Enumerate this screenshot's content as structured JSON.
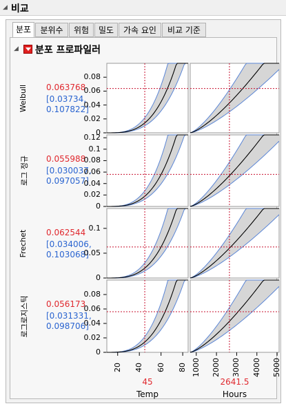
{
  "report": {
    "title": "비교"
  },
  "tabs": [
    {
      "label": "분포",
      "active": true
    },
    {
      "label": "분위수",
      "active": false
    },
    {
      "label": "위험",
      "active": false
    },
    {
      "label": "밀도",
      "active": false
    },
    {
      "label": "가속 요인",
      "active": false
    },
    {
      "label": "비교 기준",
      "active": false
    }
  ],
  "profiler": {
    "title": "분포 프로파일러"
  },
  "colors": {
    "value": "#e0282e",
    "ci": "#2a64d0",
    "band": "#d6d6d6",
    "band_edge": "#5b86d6",
    "refline": "#c8102e"
  },
  "rows": [
    {
      "label": "Weibull",
      "value": "0.063768",
      "ci_low": "[0.03734,",
      "ci_high": "0.107822]",
      "y_ticks": [
        "0.08",
        "0.06",
        "0.04",
        "0.02",
        "0"
      ]
    },
    {
      "label": "로그 정규",
      "value": "0.055988",
      "ci_low": "[0.030037,",
      "ci_high": "0.097057]",
      "y_ticks": [
        "0.12",
        "0.1",
        "0.08",
        "0.06",
        "0.04",
        "0.02",
        "0"
      ]
    },
    {
      "label": "Frechet",
      "value": "0.062544",
      "ci_low": "[0.034006,",
      "ci_high": "0.103068]",
      "y_ticks": [
        "0.1",
        "0.05",
        "0"
      ]
    },
    {
      "label": "로그로지스틱",
      "value": "0.056173",
      "ci_low": "[0.031331,",
      "ci_high": "0.098706]",
      "y_ticks": [
        "0.08",
        "0.06",
        "0.04",
        "0.02",
        "0"
      ]
    }
  ],
  "x_axes": [
    {
      "label": "Temp",
      "current": "45",
      "ticks": [
        "20",
        "40",
        "60",
        "80"
      ]
    },
    {
      "label": "Hours",
      "current": "2641.5",
      "ticks": [
        "1000",
        "2000",
        "3000",
        "4000",
        "5000"
      ]
    }
  ],
  "chart_data": {
    "type": "line",
    "title": "",
    "rows": [
      {
        "name": "Weibull",
        "ylim": [
          0,
          0.1
        ],
        "current_value": 0.063768,
        "ci": [
          0.03734,
          0.107822
        ]
      },
      {
        "name": "로그 정규",
        "ylim": [
          0,
          0.125
        ],
        "current_value": 0.055988,
        "ci": [
          0.030037,
          0.097057
        ]
      },
      {
        "name": "Frechet",
        "ylim": [
          0,
          0.14
        ],
        "current_value": 0.062544,
        "ci": [
          0.034006,
          0.103068
        ]
      },
      {
        "name": "로그로지스틱",
        "ylim": [
          0,
          0.1
        ],
        "current_value": 0.056173,
        "ci": [
          0.031331,
          0.098706
        ]
      }
    ],
    "columns": [
      {
        "name": "Temp",
        "xlim": [
          10,
          85
        ],
        "current_x": 45
      },
      {
        "name": "Hours",
        "xlim": [
          700,
          5100
        ],
        "current_x": 2641.5
      }
    ]
  }
}
